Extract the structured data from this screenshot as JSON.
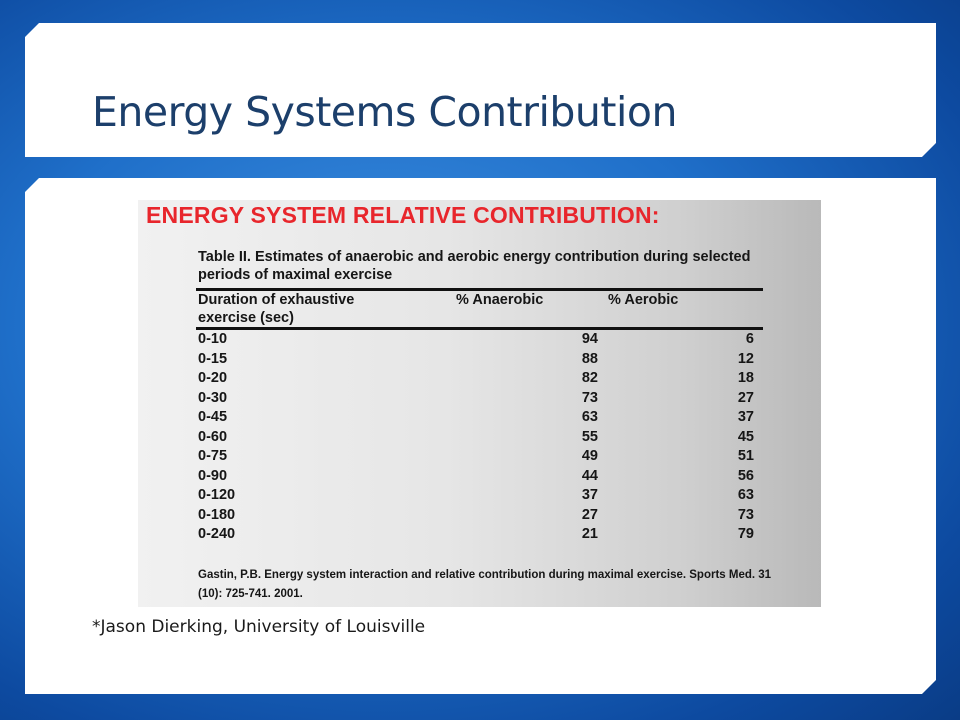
{
  "slide": {
    "title": "Energy Systems Contribution",
    "footnote": "*Jason Dierking, University of Louisville"
  },
  "table_image": {
    "heading": "ENERGY SYSTEM RELATIVE CONTRIBUTION:",
    "caption_label": "Table II.",
    "caption_text": "Estimates of anaerobic and aerobic energy contribution during selected periods of maximal exercise",
    "columns": [
      "Duration of exhaustive exercise (sec)",
      "% Anaerobic",
      "% Aerobic"
    ],
    "rows": [
      [
        "0-10",
        "94",
        "6"
      ],
      [
        "0-15",
        "88",
        "12"
      ],
      [
        "0-20",
        "82",
        "18"
      ],
      [
        "0-30",
        "73",
        "27"
      ],
      [
        "0-45",
        "63",
        "37"
      ],
      [
        "0-60",
        "55",
        "45"
      ],
      [
        "0-75",
        "49",
        "51"
      ],
      [
        "0-90",
        "44",
        "56"
      ],
      [
        "0-120",
        "37",
        "63"
      ],
      [
        "0-180",
        "27",
        "73"
      ],
      [
        "0-240",
        "21",
        "79"
      ]
    ],
    "citation": "Gastin, P.B. Energy system interaction and relative contribution during maximal exercise. Sports Med. 31 (10): 725-741. 2001."
  },
  "colors": {
    "background": "#1f6fc9",
    "title": "#1c3f6b",
    "heading_red": "#e8262c"
  }
}
